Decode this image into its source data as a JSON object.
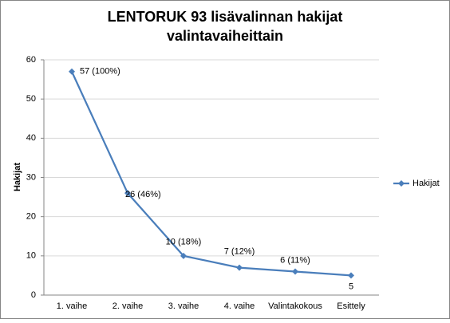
{
  "chart_data": {
    "type": "line",
    "title": [
      "LENTORUK 93 lisävalinnan  hakijat",
      "valintavaiheittain"
    ],
    "ylabel": "Hakijat",
    "categories": [
      "1. vaihe",
      "2. vaihe",
      "3. vaihe",
      "4. vaihe",
      "Valintakokous",
      "Esittely"
    ],
    "series": [
      {
        "name": "Hakijat",
        "color": "#4a7ebb",
        "values": [
          57,
          26,
          10,
          7,
          6,
          5
        ],
        "value_labels": [
          "57 (100%)",
          "26 (46%)",
          "10 (18%)",
          "7 (12%)",
          "6 (11%)",
          "5"
        ]
      }
    ],
    "ylim": [
      0,
      60
    ],
    "yticks": [
      0,
      10,
      20,
      30,
      40,
      50,
      60
    ],
    "grid": true,
    "legend": "right"
  }
}
